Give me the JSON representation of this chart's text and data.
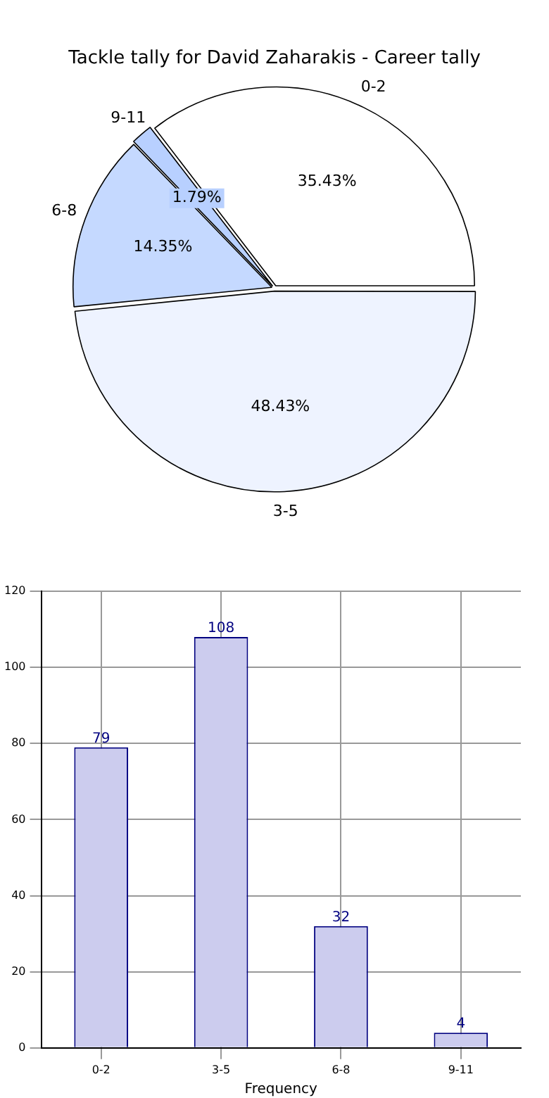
{
  "chart_data": [
    {
      "type": "pie",
      "title": "Tackle tally for David Zaharakis - Career tally",
      "categories": [
        "0-2",
        "3-5",
        "6-8",
        "9-11"
      ],
      "values": [
        35.43,
        48.43,
        14.35,
        1.79
      ],
      "value_labels": [
        "35.43%",
        "48.43%",
        "14.35%",
        "1.79%"
      ],
      "colors": [
        "#ffffff",
        "#eef3ff",
        "#c5d9ff",
        "#b8d0ff"
      ],
      "legend": false
    },
    {
      "type": "bar",
      "categories": [
        "0-2",
        "3-5",
        "6-8",
        "9-11"
      ],
      "values": [
        79,
        108,
        32,
        4
      ],
      "color": "#ccccee",
      "xlabel": "Frequency",
      "ylim": [
        0,
        120
      ],
      "yticks": [
        0,
        20,
        40,
        60,
        80,
        100,
        120
      ],
      "grid": true,
      "data_labels": true,
      "legend": false
    }
  ]
}
